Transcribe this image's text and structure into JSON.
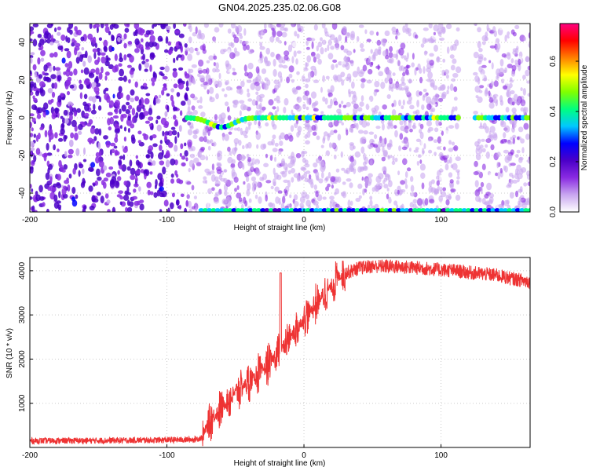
{
  "figure": {
    "title": "GN04.2025.235.02.06.G08"
  },
  "chart_data": [
    {
      "type": "heatmap",
      "xlabel": "Height of straight line (km)",
      "ylabel": "Frequency (Hz)",
      "xlim": [
        -200,
        165
      ],
      "ylim": [
        -50,
        50
      ],
      "x_ticks": [
        -200,
        -100,
        0,
        100
      ],
      "y_ticks": [
        -40,
        -20,
        0,
        20,
        40
      ],
      "grid": true,
      "colorbar": {
        "label": "Normalized spectral amplitude",
        "range": [
          0,
          0.75
        ],
        "ticks": [
          "0.0",
          "0.2",
          "0.4",
          "0.6"
        ],
        "colors": [
          "#ffffff",
          "#c9a7f0",
          "#8a2be2",
          "#4b00c8",
          "#0000ff",
          "#00c8ff",
          "#00ff80",
          "#80ff00",
          "#ffff00",
          "#ff8000",
          "#ff0000",
          "#ff0080"
        ]
      },
      "features": {
        "noise_transition_x": -85,
        "carrier_line": {
          "frequency": 0,
          "x_range": [
            -85,
            165
          ],
          "dip": {
            "x": -60,
            "frequency": -5
          }
        },
        "bottom_edge_line": {
          "frequency": -49,
          "x_range": [
            -75,
            165
          ]
        },
        "gap_x_range": [
          113,
          125
        ]
      }
    },
    {
      "type": "line",
      "xlabel": "Height of straight line (km)",
      "ylabel": "SNR (10 * v/v)",
      "xlim": [
        -200,
        165
      ],
      "ylim": [
        0,
        4300
      ],
      "x_ticks": [
        -200,
        -100,
        0,
        100
      ],
      "y_ticks": [
        1000,
        2000,
        3000,
        4000
      ],
      "grid": true,
      "color": "#ee3333",
      "series": [
        {
          "x": [
            -200,
            -150,
            -100,
            -80,
            -74,
            -70,
            -60,
            -50,
            -40,
            -30,
            -20,
            -15,
            -10,
            0,
            10,
            20,
            25,
            30,
            35,
            40,
            50,
            60,
            70,
            80,
            90,
            100,
            110,
            120,
            130,
            140,
            150,
            160,
            165
          ],
          "values": [
            150,
            155,
            170,
            180,
            220,
            550,
            900,
            1250,
            1500,
            1750,
            2100,
            2300,
            2500,
            2900,
            3300,
            3650,
            3850,
            3950,
            4000,
            4060,
            4100,
            4100,
            4090,
            4070,
            4050,
            4020,
            4000,
            3960,
            3930,
            3900,
            3830,
            3780,
            3750
          ]
        }
      ],
      "annotations": [
        {
          "x": -17,
          "y": 3950,
          "note": "spike"
        }
      ]
    }
  ]
}
